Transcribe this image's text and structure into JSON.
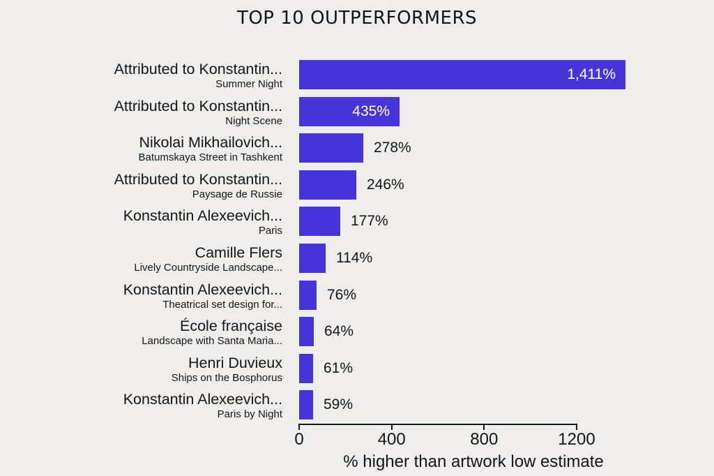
{
  "title": "TOP 10 OUTPERFORMERS",
  "colors": {
    "background": "#EFEEED",
    "bar": "#4734D8",
    "text": "#151515",
    "value_label_inside": "#FFFFFF",
    "value_label_outside": "#151515",
    "axis": "#151515"
  },
  "chart_data": {
    "type": "bar",
    "orientation": "horizontal",
    "title": "TOP 10 OUTPERFORMERS",
    "xlabel": "% higher than artwork low estimate",
    "ylabel": "",
    "xlim": [
      0,
      1440
    ],
    "xticks": [
      0,
      400,
      800,
      1200
    ],
    "xtick_labels": [
      "0",
      "400",
      "800",
      "1200"
    ],
    "grid": false,
    "legend": false,
    "categories": [
      "Attributed to Konstantin...",
      "Attributed to Konstantin...",
      "Nikolai Mikhailovich...",
      "Attributed to Konstantin...",
      "Konstantin Alexeevich...",
      "Camille Flers",
      "Konstantin Alexeevich...",
      "École française",
      "Henri Duvieux",
      "Konstantin Alexeevich..."
    ],
    "values": [
      1411,
      435,
      278,
      246,
      177,
      114,
      76,
      64,
      61,
      59
    ],
    "bars": [
      {
        "artist": "Attributed to Konstantin...",
        "artwork": "Summer Night",
        "value": 1411,
        "label": "1,411%",
        "label_position": "inside"
      },
      {
        "artist": "Attributed to Konstantin...",
        "artwork": "Night Scene",
        "value": 435,
        "label": "435%",
        "label_position": "inside"
      },
      {
        "artist": "Nikolai Mikhailovich...",
        "artwork": "Batumskaya Street in Tashkent",
        "value": 278,
        "label": "278%",
        "label_position": "outside"
      },
      {
        "artist": "Attributed to Konstantin...",
        "artwork": "Paysage de Russie",
        "value": 246,
        "label": "246%",
        "label_position": "outside"
      },
      {
        "artist": "Konstantin Alexeevich...",
        "artwork": "Paris",
        "value": 177,
        "label": "177%",
        "label_position": "outside"
      },
      {
        "artist": "Camille Flers",
        "artwork": "Lively Countryside Landscape...",
        "value": 114,
        "label": "114%",
        "label_position": "outside"
      },
      {
        "artist": "Konstantin Alexeevich...",
        "artwork": "Theatrical set design for...",
        "value": 76,
        "label": "76%",
        "label_position": "outside"
      },
      {
        "artist": "École française",
        "artwork": "Landscape with Santa Maria...",
        "value": 64,
        "label": "64%",
        "label_position": "outside"
      },
      {
        "artist": "Henri Duvieux",
        "artwork": "Ships on the Bosphorus",
        "value": 61,
        "label": "61%",
        "label_position": "outside"
      },
      {
        "artist": "Konstantin Alexeevich...",
        "artwork": "Paris by Night",
        "value": 59,
        "label": "59%",
        "label_position": "outside"
      }
    ]
  }
}
